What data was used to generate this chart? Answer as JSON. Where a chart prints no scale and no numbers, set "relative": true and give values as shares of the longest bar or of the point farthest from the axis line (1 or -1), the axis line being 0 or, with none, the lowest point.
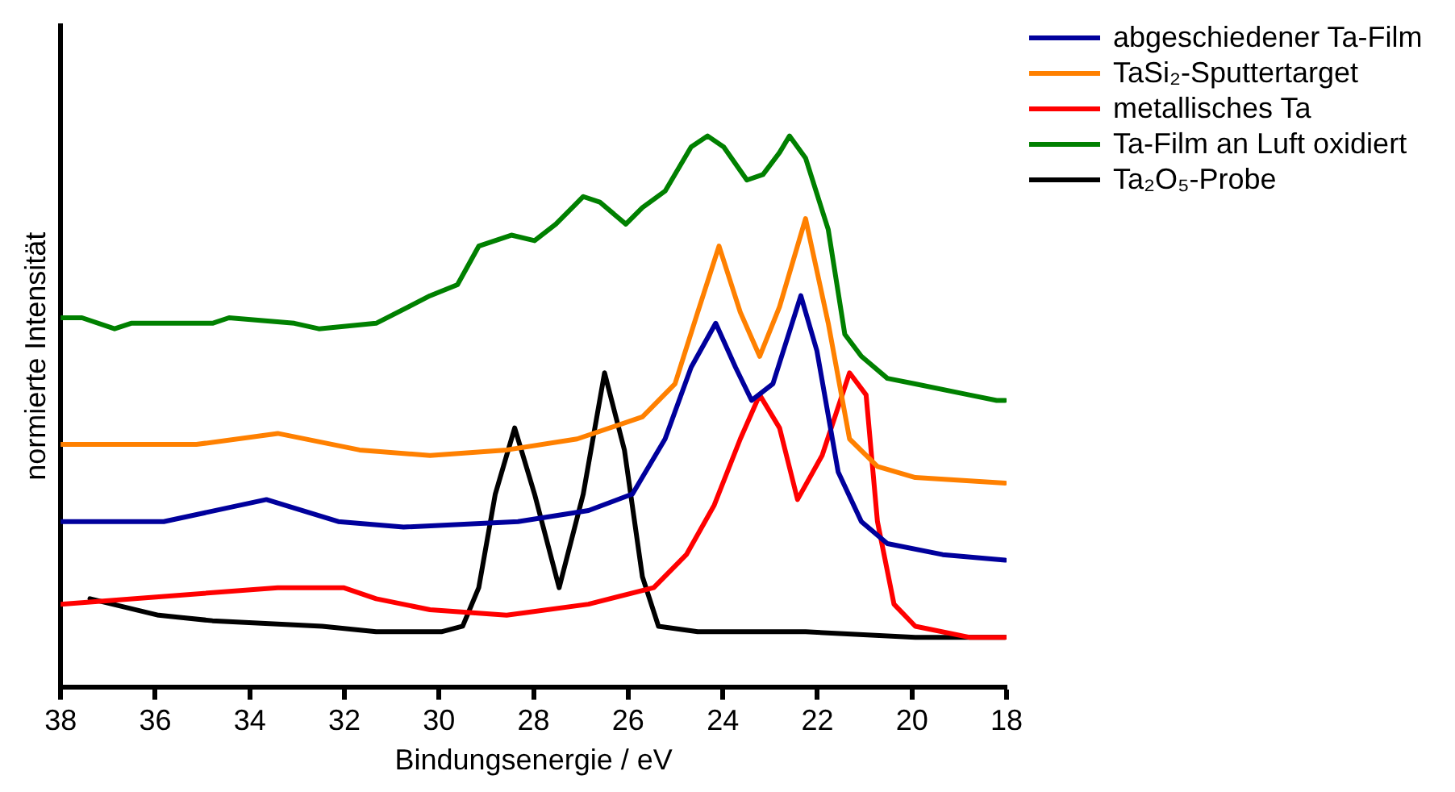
{
  "chart_data": {
    "type": "line",
    "xlabel": "Bindungsenergie / eV",
    "ylabel": "normierte Intensität",
    "relative": true,
    "xlim": [
      38,
      18
    ],
    "xticks": [
      38,
      36,
      34,
      32,
      30,
      28,
      26,
      24,
      22,
      20,
      18
    ],
    "grid": false,
    "legend": "top right",
    "marker": "none",
    "line_style": "solid",
    "series": [
      {
        "name": "abgeschiedener Ta-Film",
        "color": "#00009c",
        "x": [
          38,
          35.82,
          33.65,
          32.13,
          30.75,
          28.33,
          26.84,
          25.91,
          25.22,
          24.67,
          24.15,
          23.73,
          23.39,
          22.94,
          22.35,
          22.01,
          21.56,
          21.07,
          20.52,
          19.35,
          18.03
        ],
        "values": [
          0.3,
          0.3,
          0.34,
          0.3,
          0.29,
          0.3,
          0.32,
          0.35,
          0.45,
          0.58,
          0.66,
          0.58,
          0.52,
          0.55,
          0.71,
          0.61,
          0.39,
          0.3,
          0.26,
          0.24,
          0.23
        ]
      },
      {
        "name": "TaSi₂-Sputtertarget",
        "color": "#ff8000",
        "x": [
          38,
          35.13,
          33.41,
          31.68,
          30.19,
          28.57,
          27.08,
          25.7,
          25.01,
          24.53,
          24.08,
          23.63,
          23.22,
          22.8,
          22.25,
          21.77,
          21.32,
          20.73,
          19.93,
          18.03
        ],
        "values": [
          0.44,
          0.44,
          0.46,
          0.43,
          0.42,
          0.43,
          0.45,
          0.49,
          0.55,
          0.68,
          0.8,
          0.68,
          0.6,
          0.69,
          0.85,
          0.66,
          0.45,
          0.4,
          0.38,
          0.37
        ]
      },
      {
        "name": "metallisches Ta",
        "color": "#ff0000",
        "x": [
          38,
          33.41,
          32.72,
          32.02,
          31.33,
          30.19,
          28.57,
          26.84,
          25.46,
          24.77,
          24.18,
          23.63,
          23.22,
          22.8,
          22.42,
          21.9,
          21.32,
          20.97,
          20.73,
          20.38,
          19.93,
          18.79,
          18.03
        ],
        "values": [
          0.15,
          0.18,
          0.18,
          0.18,
          0.16,
          0.14,
          0.13,
          0.15,
          0.18,
          0.24,
          0.33,
          0.45,
          0.53,
          0.47,
          0.34,
          0.42,
          0.57,
          0.53,
          0.3,
          0.15,
          0.11,
          0.09,
          0.09
        ]
      },
      {
        "name": "Ta-Film an Luft oxidiert",
        "color": "#008000",
        "x": [
          38,
          37.55,
          36.86,
          36.51,
          34.79,
          34.44,
          33.06,
          32.54,
          31.33,
          30.19,
          29.61,
          29.16,
          28.47,
          27.98,
          27.53,
          26.95,
          26.6,
          26.05,
          25.7,
          25.22,
          24.67,
          24.32,
          23.98,
          23.49,
          23.15,
          22.8,
          22.59,
          22.25,
          21.77,
          21.42,
          21.07,
          20.52,
          19.93,
          18.79,
          18.21,
          18.03
        ],
        "values": [
          0.67,
          0.67,
          0.65,
          0.66,
          0.66,
          0.67,
          0.66,
          0.65,
          0.66,
          0.71,
          0.73,
          0.8,
          0.82,
          0.81,
          0.84,
          0.89,
          0.88,
          0.84,
          0.87,
          0.9,
          0.98,
          1,
          0.98,
          0.92,
          0.93,
          0.97,
          1,
          0.96,
          0.83,
          0.64,
          0.6,
          0.56,
          0.55,
          0.53,
          0.52,
          0.52
        ]
      },
      {
        "name": "Ta₂O₅-Probe",
        "color": "#000000",
        "x": [
          37.38,
          35.93,
          34.79,
          32.47,
          31.33,
          29.95,
          29.5,
          29.16,
          28.81,
          28.4,
          27.98,
          27.46,
          26.95,
          26.5,
          26.08,
          25.7,
          25.36,
          24.53,
          22.25,
          19.93,
          18.03
        ],
        "values": [
          0.16,
          0.13,
          0.12,
          0.11,
          0.1,
          0.1,
          0.11,
          0.18,
          0.35,
          0.47,
          0.35,
          0.18,
          0.35,
          0.57,
          0.43,
          0.2,
          0.11,
          0.1,
          0.1,
          0.09,
          0.09
        ]
      }
    ]
  }
}
